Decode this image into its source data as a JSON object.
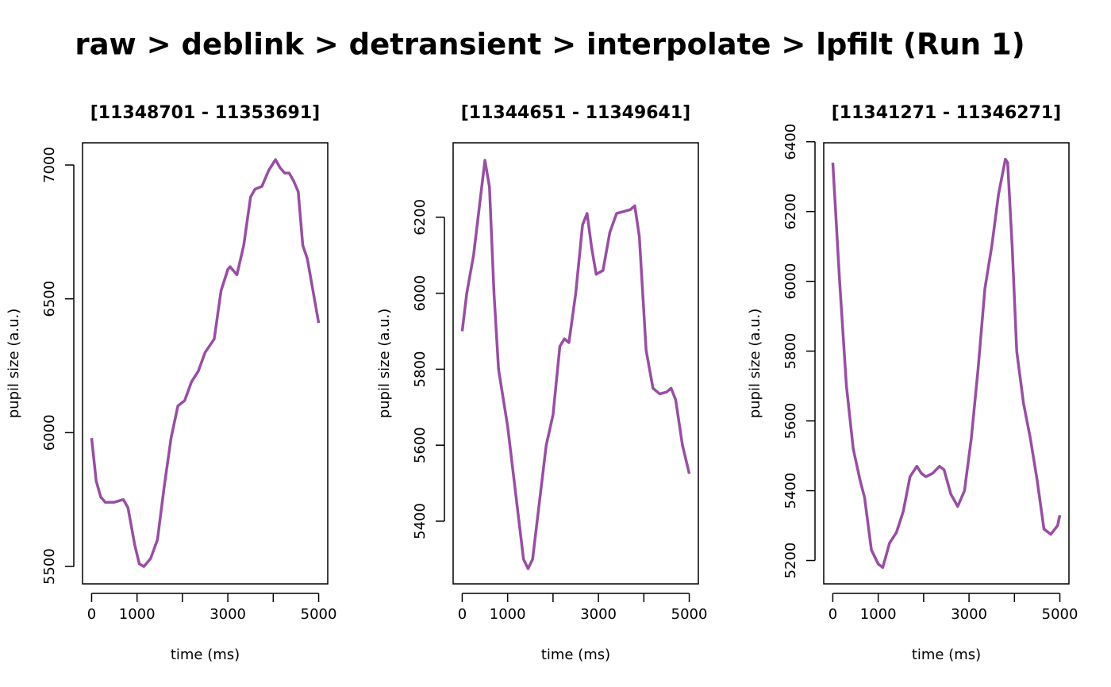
{
  "title": "raw > deblink > detransient > interpolate > lpfilt (Run 1)",
  "chart_data": [
    {
      "type": "line",
      "title": "[11348701 - 11353691]",
      "xlabel": "time (ms)",
      "ylabel": "pupil size (a.u.)",
      "xlim": [
        -200,
        5200
      ],
      "ylim": [
        5435,
        7083
      ],
      "xticks": [
        0,
        1000,
        {
          "value": 2000,
          "label": null
        },
        3000,
        {
          "value": 4000,
          "label": null
        },
        5000
      ],
      "yticks": [
        5500,
        6000,
        6500,
        7000
      ],
      "series": [
        {
          "color": "#984ea3",
          "x": [
            0,
            100,
            200,
            300,
            500,
            700,
            800,
            950,
            1050,
            1150,
            1300,
            1450,
            1600,
            1750,
            1900,
            2050,
            2200,
            2350,
            2500,
            2700,
            2850,
            3000,
            3050,
            3200,
            3350,
            3500,
            3600,
            3750,
            3900,
            4050,
            4150,
            4250,
            4350,
            4450,
            4550,
            4650,
            4750,
            5000
          ],
          "values": [
            5980,
            5820,
            5760,
            5740,
            5740,
            5750,
            5720,
            5580,
            5510,
            5500,
            5530,
            5600,
            5800,
            5980,
            6100,
            6120,
            6190,
            6230,
            6300,
            6350,
            6530,
            6610,
            6620,
            6590,
            6700,
            6880,
            6910,
            6920,
            6980,
            7020,
            6990,
            6970,
            6970,
            6940,
            6900,
            6700,
            6650,
            6410
          ]
        }
      ]
    },
    {
      "type": "line",
      "title": "[11344651 - 11349641]",
      "xlabel": "time (ms)",
      "ylabel": "pupil size (a.u.)",
      "xlim": [
        -200,
        5200
      ],
      "ylim": [
        5235,
        6396
      ],
      "xticks": [
        0,
        1000,
        {
          "value": 2000,
          "label": null
        },
        3000,
        {
          "value": 4000,
          "label": null
        },
        5000
      ],
      "yticks": [
        5400,
        5600,
        5800,
        6000,
        6200
      ],
      "series": [
        {
          "color": "#984ea3",
          "x": [
            0,
            100,
            250,
            400,
            500,
            600,
            700,
            800,
            1000,
            1200,
            1350,
            1450,
            1550,
            1700,
            1850,
            2000,
            2150,
            2250,
            2350,
            2500,
            2650,
            2750,
            2850,
            2950,
            3100,
            3250,
            3400,
            3550,
            3700,
            3800,
            3900,
            4050,
            4200,
            4350,
            4500,
            4600,
            4700,
            4850,
            5000
          ],
          "values": [
            5900,
            6000,
            6100,
            6250,
            6350,
            6280,
            6000,
            5800,
            5650,
            5450,
            5300,
            5275,
            5300,
            5450,
            5600,
            5680,
            5860,
            5880,
            5870,
            6000,
            6180,
            6210,
            6120,
            6050,
            6060,
            6160,
            6210,
            6215,
            6220,
            6230,
            6150,
            5850,
            5750,
            5735,
            5740,
            5750,
            5720,
            5600,
            5525
          ]
        }
      ]
    },
    {
      "type": "line",
      "title": "[11341271 - 11346271]",
      "xlabel": "time (ms)",
      "ylabel": "pupil size (a.u.)",
      "xlim": [
        -200,
        5200
      ],
      "ylim": [
        5133,
        6397
      ],
      "xticks": [
        0,
        1000,
        {
          "value": 2000,
          "label": null
        },
        3000,
        {
          "value": 4000,
          "label": null
        },
        5000
      ],
      "yticks": [
        5200,
        5400,
        5600,
        5800,
        6000,
        6200,
        6400
      ],
      "series": [
        {
          "color": "#984ea3",
          "x": [
            0,
            150,
            300,
            450,
            600,
            700,
            850,
            1000,
            1100,
            1250,
            1400,
            1550,
            1700,
            1850,
            1950,
            2050,
            2200,
            2350,
            2450,
            2600,
            2750,
            2900,
            3050,
            3200,
            3350,
            3500,
            3650,
            3800,
            3850,
            3950,
            4050,
            4200,
            4350,
            4500,
            4650,
            4800,
            4950,
            5000
          ],
          "values": [
            6340,
            6000,
            5700,
            5520,
            5430,
            5380,
            5230,
            5190,
            5180,
            5250,
            5280,
            5340,
            5440,
            5470,
            5450,
            5440,
            5450,
            5470,
            5460,
            5390,
            5355,
            5400,
            5550,
            5750,
            5980,
            6100,
            6250,
            6350,
            6340,
            6100,
            5800,
            5650,
            5550,
            5430,
            5290,
            5275,
            5300,
            5330
          ]
        }
      ]
    }
  ]
}
